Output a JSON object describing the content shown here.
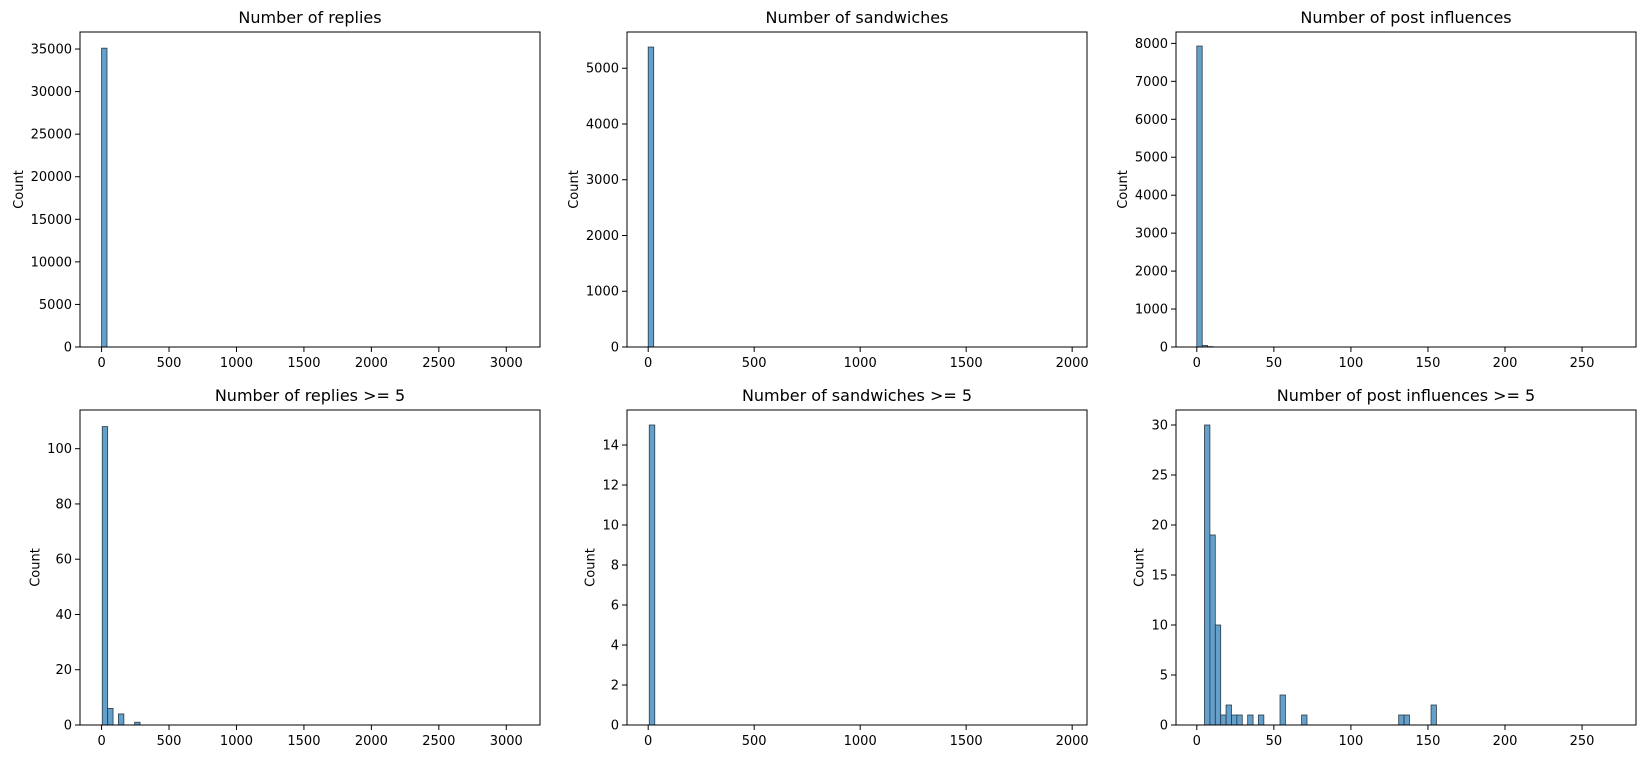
{
  "chart_data": [
    {
      "type": "bar",
      "title": "Number of replies",
      "xlabel": "",
      "ylabel": "Count",
      "xlim": [
        -160,
        3250
      ],
      "ylim": [
        0,
        37000
      ],
      "xticks": [
        0,
        500,
        1000,
        1500,
        2000,
        2500,
        3000
      ],
      "yticks": [
        0,
        5000,
        10000,
        15000,
        20000,
        25000,
        30000,
        35000
      ],
      "bins": [
        {
          "x0": 0,
          "x1": 40,
          "count": 35100
        }
      ],
      "grid": false
    },
    {
      "type": "bar",
      "title": "Number of sandwiches",
      "xlabel": "",
      "ylabel": "Count",
      "xlim": [
        -100,
        2070
      ],
      "ylim": [
        0,
        5650
      ],
      "xticks": [
        0,
        500,
        1000,
        1500,
        2000
      ],
      "yticks": [
        0,
        1000,
        2000,
        3000,
        4000,
        5000
      ],
      "bins": [
        {
          "x0": 0,
          "x1": 26,
          "count": 5380
        }
      ],
      "grid": false
    },
    {
      "type": "bar",
      "title": "Number of post influences",
      "xlabel": "",
      "ylabel": "Count",
      "xlim": [
        -13.5,
        285
      ],
      "ylim": [
        0,
        8300
      ],
      "xticks": [
        0,
        50,
        100,
        150,
        200,
        250
      ],
      "yticks": [
        0,
        1000,
        2000,
        3000,
        4000,
        5000,
        6000,
        7000,
        8000
      ],
      "bins": [
        {
          "x0": 0,
          "x1": 3.5,
          "count": 7930
        },
        {
          "x0": 3.5,
          "x1": 7,
          "count": 40
        },
        {
          "x0": 7,
          "x1": 10.5,
          "count": 10
        }
      ],
      "grid": false
    },
    {
      "type": "bar",
      "title": "Number of replies >= 5",
      "xlabel": "",
      "ylabel": "Count",
      "xlim": [
        -160,
        3250
      ],
      "ylim": [
        0,
        114
      ],
      "xticks": [
        0,
        500,
        1000,
        1500,
        2000,
        2500,
        3000
      ],
      "yticks": [
        0,
        20,
        40,
        60,
        80,
        100
      ],
      "bins": [
        {
          "x0": 5,
          "x1": 45,
          "count": 108
        },
        {
          "x0": 45,
          "x1": 85,
          "count": 6
        },
        {
          "x0": 125,
          "x1": 165,
          "count": 4
        },
        {
          "x0": 245,
          "x1": 285,
          "count": 1
        }
      ],
      "grid": false
    },
    {
      "type": "bar",
      "title": "Number of sandwiches >= 5",
      "xlabel": "",
      "ylabel": "Count",
      "xlim": [
        -100,
        2070
      ],
      "ylim": [
        0,
        15.75
      ],
      "xticks": [
        0,
        500,
        1000,
        1500,
        2000
      ],
      "yticks": [
        0,
        2,
        4,
        6,
        8,
        10,
        12,
        14
      ],
      "bins": [
        {
          "x0": 5,
          "x1": 31,
          "count": 15
        }
      ],
      "grid": false
    },
    {
      "type": "bar",
      "title": "Number of post influences >= 5",
      "xlabel": "",
      "ylabel": "Count",
      "xlim": [
        -13.5,
        285
      ],
      "ylim": [
        0,
        31.5
      ],
      "xticks": [
        0,
        50,
        100,
        150,
        200,
        250
      ],
      "yticks": [
        0,
        5,
        10,
        15,
        20,
        25,
        30
      ],
      "bins": [
        {
          "x0": 5,
          "x1": 8.5,
          "count": 30
        },
        {
          "x0": 8.5,
          "x1": 12,
          "count": 19
        },
        {
          "x0": 12,
          "x1": 15.5,
          "count": 10
        },
        {
          "x0": 15.5,
          "x1": 19,
          "count": 1
        },
        {
          "x0": 19,
          "x1": 22.5,
          "count": 2
        },
        {
          "x0": 22.5,
          "x1": 26,
          "count": 1
        },
        {
          "x0": 26,
          "x1": 29.5,
          "count": 1
        },
        {
          "x0": 33,
          "x1": 36.5,
          "count": 1
        },
        {
          "x0": 40,
          "x1": 43.5,
          "count": 1
        },
        {
          "x0": 54,
          "x1": 57.5,
          "count": 3
        },
        {
          "x0": 68,
          "x1": 71.5,
          "count": 1
        },
        {
          "x0": 131,
          "x1": 134.5,
          "count": 1
        },
        {
          "x0": 134.5,
          "x1": 138,
          "count": 1
        },
        {
          "x0": 152,
          "x1": 155.5,
          "count": 2
        }
      ],
      "grid": false
    }
  ],
  "colors": {
    "bar_fill": "#5b9bc8",
    "bar_edge": "#2b3a44",
    "axes": "#000000"
  }
}
